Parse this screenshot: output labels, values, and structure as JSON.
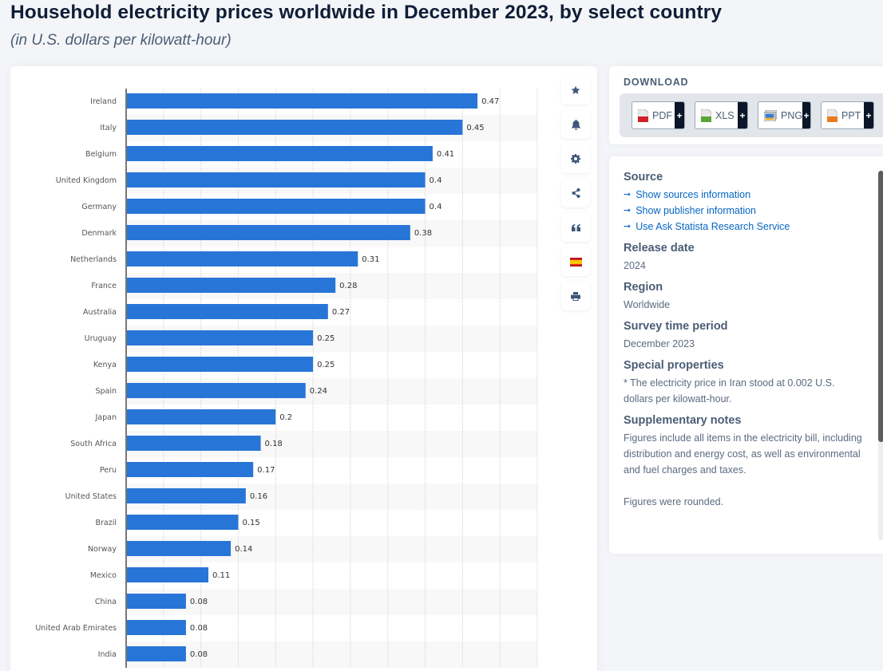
{
  "page": {
    "title": "Household electricity prices worldwide in December 2023, by select country",
    "subtitle": "(in U.S. dollars per kilowatt-hour)"
  },
  "toolbar": [
    {
      "name": "favorite-button",
      "icon": "star-icon"
    },
    {
      "name": "notification-button",
      "icon": "bell-icon"
    },
    {
      "name": "settings-button",
      "icon": "gear-icon"
    },
    {
      "name": "share-button",
      "icon": "share-icon"
    },
    {
      "name": "cite-button",
      "icon": "quote-icon"
    },
    {
      "name": "language-button",
      "icon": "spain-flag-icon"
    },
    {
      "name": "print-button",
      "icon": "printer-icon"
    }
  ],
  "download": {
    "title": "DOWNLOAD",
    "buttons": [
      {
        "label": "PDF",
        "icon": "pdf-file-icon",
        "color": "#d0202a"
      },
      {
        "label": "XLS",
        "icon": "xls-file-icon",
        "color": "#58a531"
      },
      {
        "label": "PNG",
        "icon": "png-image-icon",
        "color": "#3a7bd5"
      },
      {
        "label": "PPT",
        "icon": "ppt-file-icon",
        "color": "#ec7a1c"
      }
    ],
    "plus": "+"
  },
  "info": {
    "source_heading": "Source",
    "links": [
      "Show sources information",
      "Show publisher information",
      "Use Ask Statista Research Service"
    ],
    "release_heading": "Release date",
    "release_value": "2024",
    "region_heading": "Region",
    "region_value": "Worldwide",
    "survey_heading": "Survey time period",
    "survey_value": "December 2023",
    "special_heading": "Special properties",
    "special_value": "* The electricity price in Iran stood at 0.002 U.S. dollars per kilowatt-hour.",
    "supp_heading": "Supplementary notes",
    "supp_value": "Figures include all items in the electricity bill, including distribution and energy cost, as well as environmental and fuel charges and taxes.",
    "supp_value2": "Figures were rounded."
  },
  "chart_data": {
    "type": "bar",
    "orientation": "horizontal",
    "title": "Household electricity prices worldwide in December 2023, by select country",
    "subtitle": "(in U.S. dollars per kilowatt-hour)",
    "xlabel": "",
    "ylabel": "",
    "xlim": [
      0,
      0.55
    ],
    "grid": true,
    "grid_step": 0.05,
    "bar_color": "#2875d8",
    "categories": [
      "Ireland",
      "Italy",
      "Belgium",
      "United Kingdom",
      "Germany",
      "Denmark",
      "Netherlands",
      "France",
      "Australia",
      "Uruguay",
      "Kenya",
      "Spain",
      "Japan",
      "South Africa",
      "Peru",
      "United States",
      "Brazil",
      "Norway",
      "Mexico",
      "China",
      "United Arab Emirates",
      "India"
    ],
    "values": [
      0.47,
      0.45,
      0.41,
      0.4,
      0.4,
      0.38,
      0.31,
      0.28,
      0.27,
      0.25,
      0.25,
      0.24,
      0.2,
      0.18,
      0.17,
      0.16,
      0.15,
      0.14,
      0.11,
      0.08,
      0.08,
      0.08
    ],
    "labels": [
      "0.47",
      "0.45",
      "0.41",
      "0.4",
      "0.4",
      "0.38",
      "0.31",
      "0.28",
      "0.27",
      "0.25",
      "0.25",
      "0.24",
      "0.2",
      "0.18",
      "0.17",
      "0.16",
      "0.15",
      "0.14",
      "0.11",
      "0.08",
      "0.08",
      "0.08"
    ]
  }
}
